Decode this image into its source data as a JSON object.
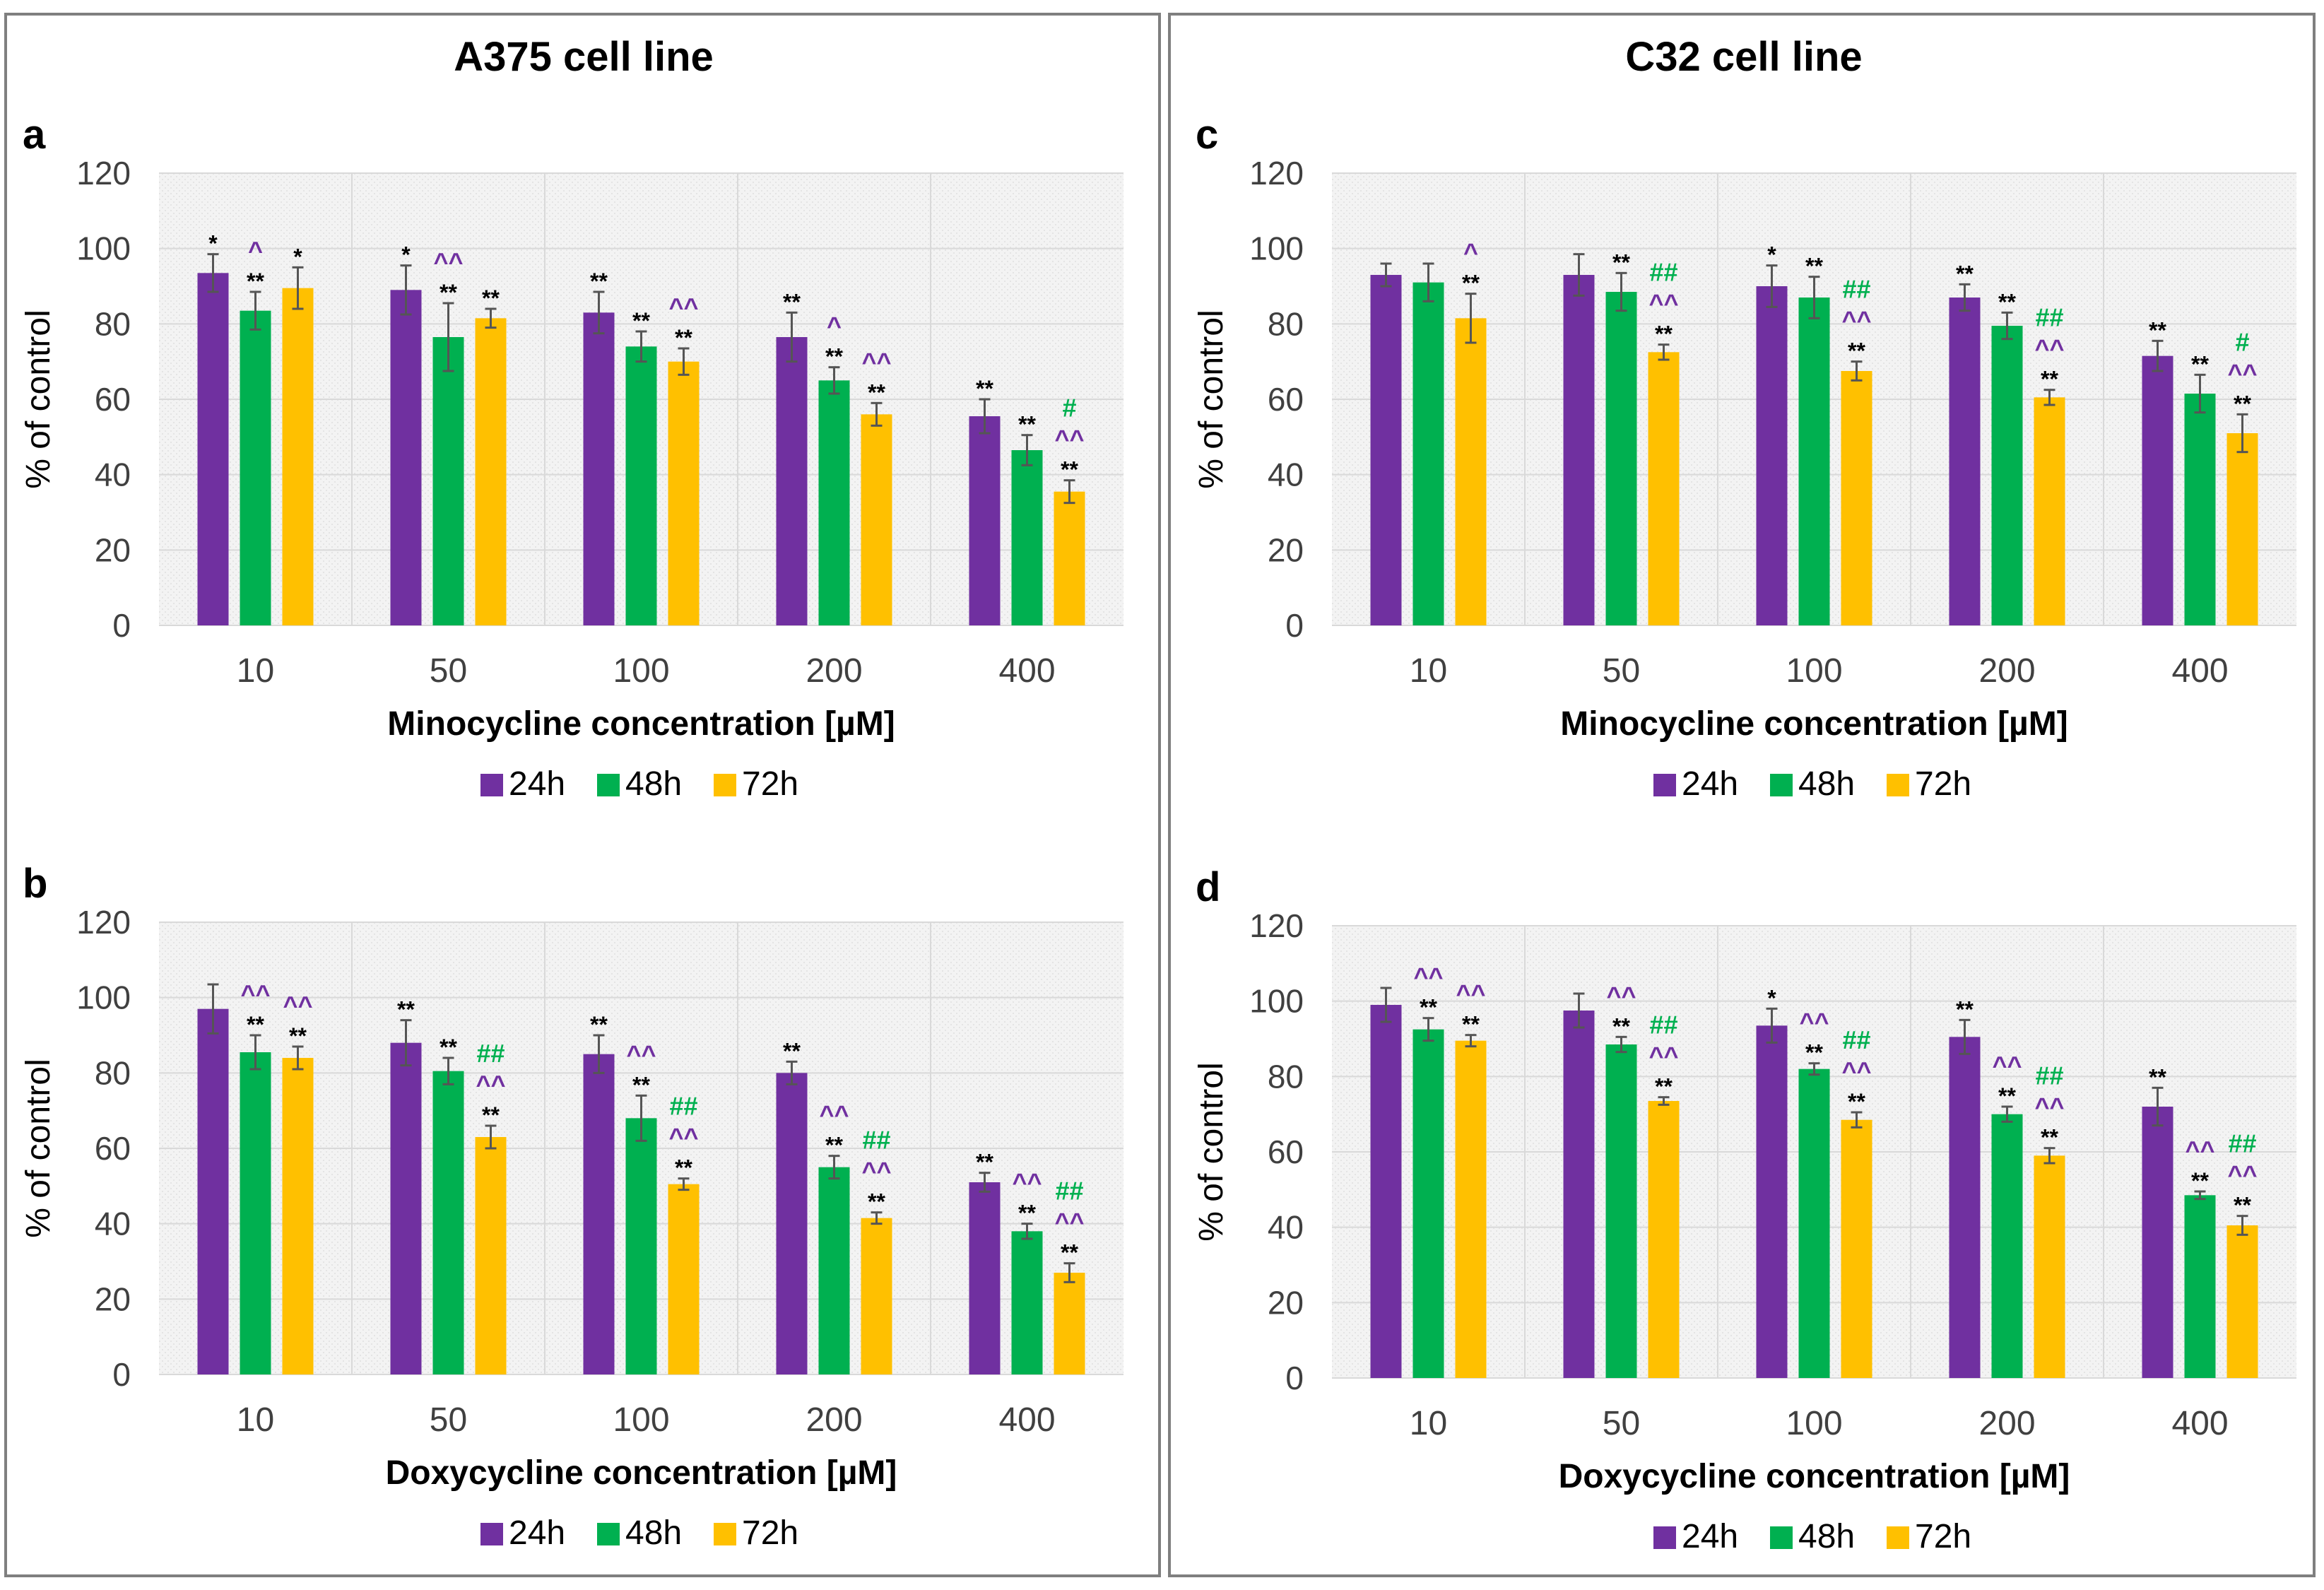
{
  "titles": {
    "left": "A375 cell line",
    "right": "C32 cell line"
  },
  "legend_labels": [
    "24h",
    "48h",
    "72h"
  ],
  "colors": {
    "24h": "#7030A0",
    "48h": "#00B050",
    "72h": "#FFC000",
    "caret": "#7030A0",
    "hash": "#00B050",
    "star": "#000000",
    "grid": "#D9D9D9",
    "plotbg": "#F2F2F2",
    "frame": "#7F7F7F",
    "axis": "#404040"
  },
  "chart_data": [
    {
      "id": "a",
      "panel": "a",
      "type": "bar",
      "cell_line": "A375 cell line",
      "xlabel": "Minocycline concentration [µM]",
      "ylabel": "% of control",
      "categories": [
        "10",
        "50",
        "100",
        "200",
        "400"
      ],
      "ylim": [
        0,
        120
      ],
      "yticks": [
        "0",
        "20",
        "40",
        "60",
        "80",
        "100",
        "120"
      ],
      "legend": "bottom-center",
      "series": [
        {
          "name": "24h",
          "values": [
            93.5,
            89,
            83,
            76.5,
            55.5
          ],
          "errors": [
            5,
            6.5,
            5.5,
            6.5,
            4.5
          ],
          "annotations": [
            [
              "*"
            ],
            [
              "*"
            ],
            [
              "**"
            ],
            [
              "**"
            ],
            [
              "**"
            ]
          ]
        },
        {
          "name": "48h",
          "values": [
            83.5,
            76.5,
            74,
            65,
            46.5
          ],
          "errors": [
            5,
            9,
            4,
            3.5,
            4
          ],
          "annotations": [
            [
              "^",
              "**"
            ],
            [
              "^^",
              "**"
            ],
            [
              "**"
            ],
            [
              "^",
              "**"
            ],
            [
              "**"
            ]
          ]
        },
        {
          "name": "72h",
          "values": [
            89.5,
            81.5,
            70,
            56,
            35.5
          ],
          "errors": [
            5.5,
            2.5,
            3.5,
            3,
            3
          ],
          "annotations": [
            [
              "*"
            ],
            [
              "**"
            ],
            [
              "^^",
              "**"
            ],
            [
              "^^",
              "**"
            ],
            [
              "#",
              "^^",
              "**"
            ]
          ]
        }
      ]
    },
    {
      "id": "b",
      "panel": "b",
      "type": "bar",
      "cell_line": "A375 cell line",
      "xlabel": "Doxycycline concentration [µM]",
      "ylabel": "% of control",
      "categories": [
        "10",
        "50",
        "100",
        "200",
        "400"
      ],
      "ylim": [
        0,
        120
      ],
      "yticks": [
        "0",
        "20",
        "40",
        "60",
        "80",
        "100",
        "120"
      ],
      "legend": "bottom-center",
      "series": [
        {
          "name": "24h",
          "values": [
            97,
            88,
            85,
            80,
            51
          ],
          "errors": [
            6.5,
            6,
            5,
            3,
            2.5
          ],
          "annotations": [
            [],
            [
              "**"
            ],
            [
              "**"
            ],
            [
              "**"
            ],
            [
              "**"
            ]
          ]
        },
        {
          "name": "48h",
          "values": [
            85.5,
            80.5,
            68,
            55,
            38
          ],
          "errors": [
            4.5,
            3.5,
            6,
            3,
            2
          ],
          "annotations": [
            [
              "^^",
              "**"
            ],
            [
              "**"
            ],
            [
              "^^",
              "**"
            ],
            [
              "^^",
              "**"
            ],
            [
              "^^",
              "**"
            ]
          ]
        },
        {
          "name": "72h",
          "values": [
            84,
            63,
            50.5,
            41.5,
            27
          ],
          "errors": [
            3,
            3,
            1.5,
            1.5,
            2.5
          ],
          "annotations": [
            [
              "^^",
              "**"
            ],
            [
              "##",
              "^^",
              "**"
            ],
            [
              "##",
              "^^",
              "**"
            ],
            [
              "##",
              "^^",
              "**"
            ],
            [
              "##",
              "^^",
              "**"
            ]
          ]
        }
      ]
    },
    {
      "id": "c",
      "panel": "c",
      "type": "bar",
      "cell_line": "C32 cell line",
      "xlabel": "Minocycline concentration [µM]",
      "ylabel": "% of control",
      "categories": [
        "10",
        "50",
        "100",
        "200",
        "400"
      ],
      "ylim": [
        0,
        120
      ],
      "yticks": [
        "0",
        "20",
        "40",
        "60",
        "80",
        "100",
        "120"
      ],
      "legend": "bottom-center",
      "series": [
        {
          "name": "24h",
          "values": [
            93,
            93,
            90,
            87,
            71.5
          ],
          "errors": [
            3,
            5.5,
            5.5,
            3.5,
            4
          ],
          "annotations": [
            [],
            [],
            [
              "*"
            ],
            [
              "**"
            ],
            [
              "**"
            ]
          ]
        },
        {
          "name": "48h",
          "values": [
            91,
            88.5,
            87,
            79.5,
            61.5
          ],
          "errors": [
            5,
            5,
            5.5,
            3.5,
            5
          ],
          "annotations": [
            [],
            [
              "**"
            ],
            [
              "**"
            ],
            [
              "**"
            ],
            [
              "**"
            ]
          ]
        },
        {
          "name": "72h",
          "values": [
            81.5,
            72.5,
            67.5,
            60.5,
            51
          ],
          "errors": [
            6.5,
            2,
            2.5,
            2,
            5
          ],
          "annotations": [
            [
              "^",
              "**"
            ],
            [
              "##",
              "^^",
              "**"
            ],
            [
              "##",
              "^^",
              "**"
            ],
            [
              "##",
              "^^",
              "**"
            ],
            [
              "#",
              "^^",
              "**"
            ]
          ]
        }
      ]
    },
    {
      "id": "d",
      "panel": "d",
      "type": "bar",
      "cell_line": "C32 cell line",
      "xlabel": "Doxycycline concentration [µM]",
      "ylabel": "% of control",
      "categories": [
        "10",
        "50",
        "100",
        "200",
        "400"
      ],
      "ylim": [
        0,
        120
      ],
      "yticks": [
        "0",
        "20",
        "40",
        "60",
        "80",
        "100",
        "120"
      ],
      "legend": "bottom-center",
      "series": [
        {
          "name": "24h",
          "values": [
            99,
            97.5,
            93.5,
            90.5,
            72
          ],
          "errors": [
            4.5,
            4.5,
            4.5,
            4.5,
            5
          ],
          "annotations": [
            [],
            [],
            [
              "*"
            ],
            [
              "**"
            ],
            [
              "**"
            ]
          ]
        },
        {
          "name": "48h",
          "values": [
            92.5,
            88.5,
            82,
            70,
            48.5
          ],
          "errors": [
            3,
            2,
            1.5,
            2,
            1
          ],
          "annotations": [
            [
              "^^",
              "**"
            ],
            [
              "^^",
              "**"
            ],
            [
              "^^",
              "**"
            ],
            [
              "^^",
              "**"
            ],
            [
              "^^",
              "**"
            ]
          ]
        },
        {
          "name": "72h",
          "values": [
            89.5,
            73.5,
            68.5,
            59,
            40.5
          ],
          "errors": [
            1.5,
            1,
            2,
            2,
            2.5
          ],
          "annotations": [
            [
              "^^",
              "**"
            ],
            [
              "##",
              "^^",
              "**"
            ],
            [
              "##",
              "^^",
              "**"
            ],
            [
              "##",
              "^^",
              "**"
            ],
            [
              "##",
              "^^",
              "**"
            ]
          ]
        }
      ]
    }
  ]
}
